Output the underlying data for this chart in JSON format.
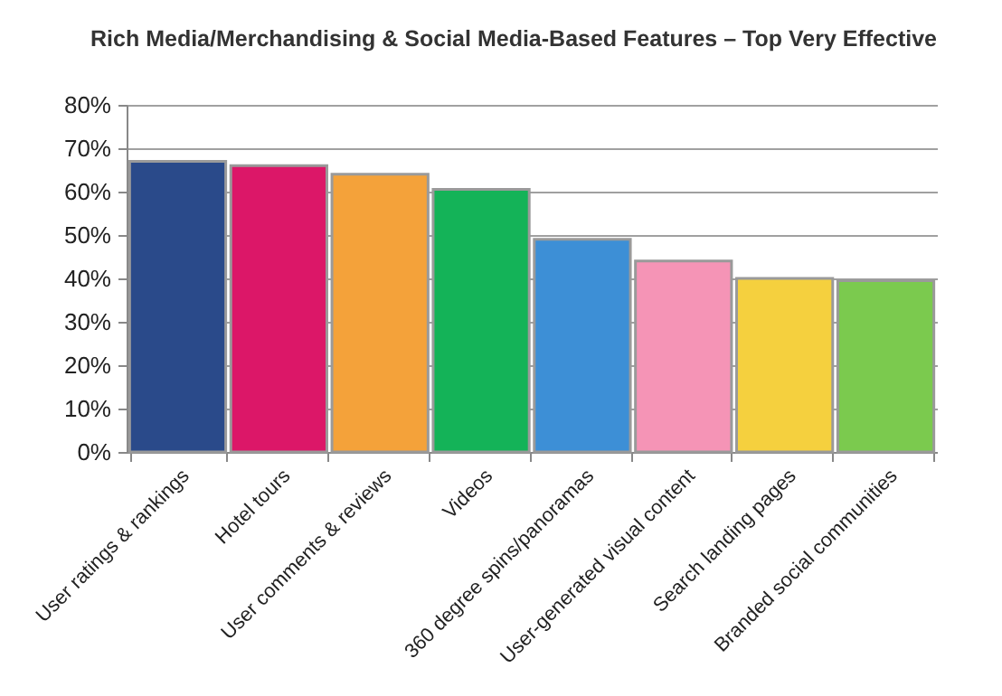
{
  "chart_data": {
    "type": "bar",
    "title": "Rich Media/Merchandising & Social Media-Based Features – Top Very Effective",
    "categories": [
      "User ratings & rankings",
      "Hotel tours",
      "User comments & reviews",
      "Videos",
      "360 degree spins/panoramas",
      "User-generated visual content",
      "Search landing pages",
      "Branded social communities"
    ],
    "values": [
      67,
      66,
      64,
      60.5,
      49,
      44,
      40,
      39.5
    ],
    "colors": [
      "#2a4a8a",
      "#dc1768",
      "#f4a23a",
      "#14b358",
      "#3d8fd6",
      "#f594b6",
      "#f5d03e",
      "#7bca4e"
    ],
    "ylim": [
      0,
      80
    ],
    "yticks": [
      {
        "value": 0,
        "label": "0%"
      },
      {
        "value": 10,
        "label": "10%"
      },
      {
        "value": 20,
        "label": "20%"
      },
      {
        "value": 30,
        "label": "30%"
      },
      {
        "value": 40,
        "label": "40%"
      },
      {
        "value": 50,
        "label": "50%"
      },
      {
        "value": 60,
        "label": "60%"
      },
      {
        "value": 70,
        "label": "70%"
      },
      {
        "value": 80,
        "label": "80%"
      }
    ],
    "grid": "y"
  }
}
